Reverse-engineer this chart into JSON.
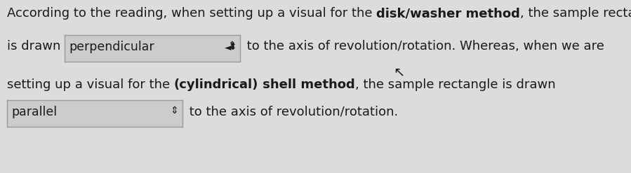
{
  "bg_color": "#dcdcdc",
  "line1_pre": "According to the reading, when setting up a visual for the ",
  "line1_bold": "disk/washer method",
  "line1_post": ", the sample rectangle",
  "line2_pre": "is drawn",
  "line2_box": "perpendicular",
  "line2_post": " to the axis of revolution/rotation. Whereas, when we are",
  "line3_pre": "setting up a visual for the ",
  "line3_bold1": "(cylindrical)",
  "line3_bold2": " shell method",
  "line3_post": ", the sample rectangle is drawn",
  "line4_box": "parallel",
  "line4_post": " to the axis of revolution/rotation.",
  "box_facecolor": "#cccccc",
  "box_edgecolor": "#999999",
  "font_size": 13.0,
  "text_color": "#1a1a1a",
  "figw": 8.99,
  "figh": 2.47,
  "dpi": 100
}
